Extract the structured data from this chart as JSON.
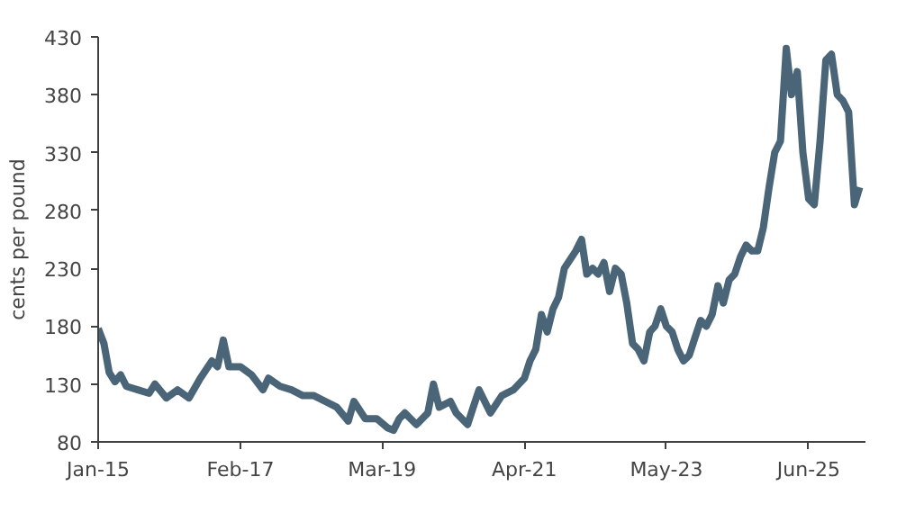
{
  "chart_data": {
    "type": "line",
    "ylabel": "cents per pound",
    "x": [
      "2015-01",
      "2015-02",
      "2015-03",
      "2015-04",
      "2015-05",
      "2015-06",
      "2015-08",
      "2015-10",
      "2015-11",
      "2016-01",
      "2016-03",
      "2016-05",
      "2016-07",
      "2016-09",
      "2016-10",
      "2016-11",
      "2016-12",
      "2017-02",
      "2017-04",
      "2017-06",
      "2017-07",
      "2017-09",
      "2017-11",
      "2018-01",
      "2018-03",
      "2018-05",
      "2018-07",
      "2018-09",
      "2018-10",
      "2018-12",
      "2019-02",
      "2019-04",
      "2019-05",
      "2019-06",
      "2019-07",
      "2019-09",
      "2019-11",
      "2019-12",
      "2020-01",
      "2020-03",
      "2020-04",
      "2020-06",
      "2020-07",
      "2020-08",
      "2020-10",
      "2020-12",
      "2021-02",
      "2021-04",
      "2021-05",
      "2021-06",
      "2021-07",
      "2021-08",
      "2021-09",
      "2021-10",
      "2021-11",
      "2022-01",
      "2022-02",
      "2022-03",
      "2022-04",
      "2022-05",
      "2022-06",
      "2022-07",
      "2022-08",
      "2022-09",
      "2022-10",
      "2022-11",
      "2022-12",
      "2023-01",
      "2023-02",
      "2023-03",
      "2023-04",
      "2023-05",
      "2023-06",
      "2023-07",
      "2023-08",
      "2023-09",
      "2023-10",
      "2023-11",
      "2023-12",
      "2024-01",
      "2024-02",
      "2024-03",
      "2024-04",
      "2024-05",
      "2024-06",
      "2024-07",
      "2024-08",
      "2024-09",
      "2024-10",
      "2024-11",
      "2024-12",
      "2025-01",
      "2025-02",
      "2025-03",
      "2025-04",
      "2025-05",
      "2025-06",
      "2025-07",
      "2025-08",
      "2025-09",
      "2025-10",
      "2025-11",
      "2025-12",
      "2026-01",
      "2026-02",
      "2026-03"
    ],
    "series": [
      {
        "color": "#4a6577",
        "values": [
          178,
          165,
          140,
          132,
          138,
          128,
          125,
          122,
          130,
          118,
          125,
          118,
          135,
          150,
          145,
          168,
          145,
          145,
          138,
          125,
          135,
          128,
          125,
          120,
          120,
          115,
          110,
          98,
          115,
          100,
          100,
          92,
          90,
          100,
          105,
          95,
          105,
          130,
          110,
          115,
          105,
          95,
          110,
          125,
          105,
          120,
          125,
          135,
          150,
          160,
          190,
          175,
          195,
          205,
          230,
          245,
          255,
          225,
          230,
          225,
          235,
          210,
          230,
          225,
          200,
          165,
          160,
          150,
          175,
          180,
          195,
          180,
          175,
          160,
          150,
          155,
          170,
          185,
          180,
          190,
          215,
          200,
          220,
          225,
          240,
          250,
          245,
          245,
          265,
          300,
          330,
          340,
          420,
          380,
          400,
          330,
          290,
          285,
          340,
          410,
          415,
          380,
          375,
          365,
          285,
          300
        ]
      }
    ],
    "xlim": [
      "2015-01",
      "2026-04"
    ],
    "xticks": [
      {
        "value": "2015-01",
        "label": "Jan-15"
      },
      {
        "value": "2017-02",
        "label": "Feb-17"
      },
      {
        "value": "2019-03",
        "label": "Mar-19"
      },
      {
        "value": "2021-04",
        "label": "Apr-21"
      },
      {
        "value": "2023-05",
        "label": "May-23"
      },
      {
        "value": "2025-06",
        "label": "Jun-25"
      }
    ],
    "ylim": [
      80,
      430
    ],
    "yticks": [
      80,
      130,
      180,
      230,
      280,
      330,
      380,
      430
    ],
    "grid": false
  }
}
